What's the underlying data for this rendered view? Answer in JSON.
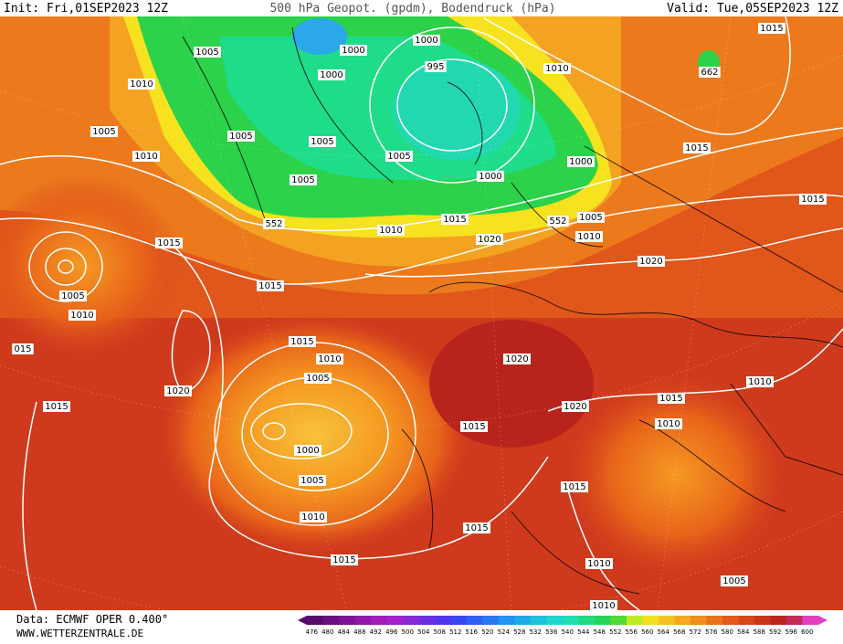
{
  "header": {
    "init": "Init: Fri,01SEP2023 12Z",
    "title": "500 hPa Geopot. (gpdm), Bodendruck (hPa)",
    "valid": "Valid: Tue,05SEP2023 12Z"
  },
  "map": {
    "contour_labels": [
      "1005",
      "1000",
      "1000",
      "1010",
      "1000",
      "995",
      "1010",
      "662",
      "1015",
      "1005",
      "1005",
      "1005",
      "1010",
      "1005",
      "1000",
      "1015",
      "1005",
      "1000",
      "1015",
      "552",
      "1010",
      "1015",
      "552",
      "1005",
      "1020",
      "1010",
      "1015",
      "1020",
      "1015",
      "1005",
      "1010",
      "015",
      "1015",
      "1010",
      "1020",
      "1005",
      "1020",
      "1010",
      "1015",
      "1015",
      "1020",
      "1010",
      "1015",
      "1000",
      "1005",
      "1015",
      "1010",
      "1015",
      "1015",
      "1010",
      "1005",
      "1010"
    ]
  },
  "footer": {
    "data_source": "Data: ECMWF OPER 0.400°",
    "website": "WWW.WETTERZENTRALE.DE"
  },
  "legend": {
    "labels": [
      "476",
      "480",
      "484",
      "488",
      "492",
      "496",
      "500",
      "504",
      "508",
      "512",
      "516",
      "520",
      "524",
      "528",
      "532",
      "536",
      "540",
      "544",
      "548",
      "552",
      "556",
      "560",
      "564",
      "568",
      "572",
      "576",
      "580",
      "584",
      "588",
      "592",
      "596",
      "600"
    ]
  }
}
